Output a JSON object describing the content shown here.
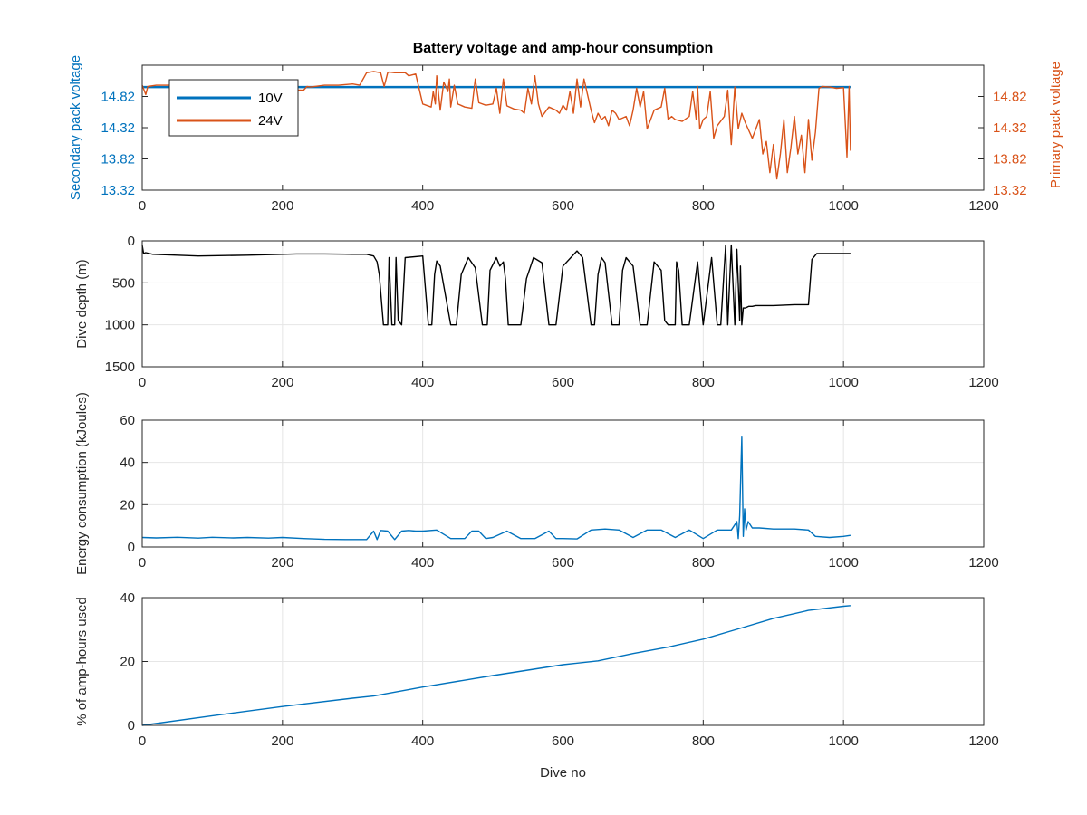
{
  "figure": {
    "background": "#ffffff"
  },
  "chart_data": [
    {
      "id": "voltage",
      "type": "line",
      "title": "Battery voltage and amp-hour consumption",
      "xlabel": "",
      "ylabel": "Secondary pack voltage",
      "ylabel_right": "Primary pack voltage",
      "xlim": [
        0,
        1200
      ],
      "ylim": [
        13.32,
        15.32
      ],
      "xticks": [
        "0",
        "200",
        "400",
        "600",
        "800",
        "1000",
        "1200"
      ],
      "yticks": [
        "13.32",
        "13.82",
        "14.32",
        "14.82"
      ],
      "yticks_right": [
        "13.32",
        "13.82",
        "14.32",
        "14.82"
      ],
      "grid": false,
      "legend_position": "top-left",
      "series": [
        {
          "name": "10V",
          "color": "#0072BD",
          "axis": "left",
          "x": [
            0,
            1010
          ],
          "y": [
            14.97,
            14.97
          ]
        },
        {
          "name": "24V",
          "color": "#D95319",
          "axis": "right",
          "x": [
            0,
            5,
            8,
            20,
            40,
            60,
            80,
            100,
            130,
            160,
            200,
            230,
            235,
            240,
            260,
            280,
            300,
            310,
            320,
            330,
            340,
            345,
            350,
            352,
            360,
            375,
            380,
            390,
            400,
            412,
            415,
            418,
            420,
            425,
            430,
            436,
            438,
            440,
            445,
            450,
            460,
            470,
            475,
            480,
            490,
            500,
            505,
            510,
            515,
            520,
            530,
            540,
            545,
            550,
            555,
            560,
            565,
            570,
            580,
            590,
            595,
            600,
            605,
            610,
            615,
            620,
            625,
            630,
            640,
            645,
            650,
            655,
            660,
            665,
            670,
            675,
            680,
            690,
            695,
            700,
            705,
            710,
            715,
            720,
            730,
            740,
            745,
            750,
            755,
            760,
            770,
            780,
            785,
            790,
            792,
            795,
            800,
            805,
            810,
            815,
            820,
            830,
            835,
            840,
            845,
            850,
            855,
            860,
            870,
            880,
            885,
            890,
            895,
            900,
            905,
            910,
            915,
            920,
            925,
            930,
            935,
            940,
            945,
            950,
            955,
            960,
            965,
            970,
            980,
            990,
            1000,
            1005,
            1008,
            1010
          ],
          "y": [
            15.0,
            14.85,
            14.98,
            15.0,
            15.0,
            15.02,
            14.99,
            14.97,
            14.96,
            14.95,
            14.93,
            14.92,
            14.98,
            14.97,
            15.0,
            15.0,
            15.02,
            15.0,
            15.2,
            15.22,
            15.2,
            14.98,
            15.2,
            15.21,
            15.2,
            15.2,
            15.15,
            15.18,
            14.7,
            14.65,
            14.9,
            14.7,
            15.15,
            14.6,
            15.05,
            14.9,
            15.1,
            14.65,
            15.0,
            14.7,
            14.65,
            14.63,
            15.1,
            14.72,
            14.68,
            14.7,
            14.95,
            14.55,
            15.1,
            14.67,
            14.62,
            14.6,
            14.55,
            14.95,
            14.7,
            15.15,
            14.7,
            14.5,
            14.65,
            14.6,
            14.55,
            14.68,
            14.6,
            14.9,
            14.55,
            15.1,
            14.65,
            15.1,
            14.6,
            14.4,
            14.55,
            14.45,
            14.5,
            14.35,
            14.6,
            14.55,
            14.45,
            14.5,
            14.35,
            14.6,
            14.95,
            14.65,
            14.9,
            14.3,
            14.6,
            14.65,
            14.95,
            14.45,
            14.5,
            14.45,
            14.42,
            14.5,
            14.9,
            14.45,
            14.98,
            14.3,
            14.45,
            14.5,
            14.9,
            14.15,
            14.35,
            14.5,
            14.92,
            14.05,
            14.97,
            14.3,
            14.55,
            14.4,
            14.15,
            14.45,
            13.9,
            14.1,
            13.6,
            14.05,
            13.5,
            13.9,
            14.45,
            13.6,
            14.0,
            14.5,
            13.9,
            14.2,
            13.6,
            14.45,
            13.8,
            14.25,
            14.95,
            14.98,
            14.97,
            14.95,
            14.96,
            13.85,
            14.98,
            13.95
          ]
        }
      ]
    },
    {
      "id": "depth",
      "type": "line",
      "title": "",
      "xlabel": "",
      "ylabel": "Dive depth (m)",
      "xlim": [
        0,
        1200
      ],
      "ylim": [
        0,
        1500
      ],
      "y_reversed": true,
      "xticks": [
        "0",
        "200",
        "400",
        "600",
        "800",
        "1000",
        "1200"
      ],
      "yticks": [
        "0",
        "500",
        "1000",
        "1500"
      ],
      "grid": true,
      "series": [
        {
          "name": "",
          "color": "#000000",
          "x": [
            0,
            2,
            5,
            15,
            50,
            80,
            150,
            220,
            260,
            300,
            320,
            330,
            335,
            338,
            344,
            350,
            352,
            356,
            360,
            362,
            365,
            370,
            375,
            400,
            408,
            413,
            417,
            420,
            425,
            440,
            448,
            455,
            465,
            475,
            485,
            492,
            496,
            505,
            510,
            515,
            518,
            522,
            540,
            548,
            558,
            570,
            580,
            590,
            600,
            620,
            628,
            640,
            645,
            650,
            655,
            660,
            670,
            680,
            685,
            690,
            700,
            710,
            720,
            730,
            740,
            745,
            750,
            760,
            762,
            765,
            770,
            775,
            780,
            792,
            800,
            812,
            820,
            825,
            832,
            835,
            840,
            845,
            848,
            852,
            853,
            855,
            857,
            860,
            865,
            870,
            875,
            880,
            900,
            930,
            945,
            950,
            955,
            962,
            980,
            1000,
            1010
          ],
          "y": [
            50,
            150,
            140,
            160,
            170,
            180,
            170,
            155,
            155,
            160,
            160,
            180,
            250,
            400,
            1000,
            1000,
            200,
            1000,
            1000,
            200,
            950,
            1000,
            200,
            180,
            1000,
            1000,
            400,
            240,
            300,
            1000,
            1000,
            400,
            200,
            320,
            1000,
            1000,
            350,
            200,
            300,
            250,
            450,
            1000,
            1000,
            450,
            200,
            260,
            1000,
            1000,
            300,
            120,
            200,
            1000,
            1000,
            400,
            200,
            260,
            1000,
            1000,
            350,
            200,
            300,
            1000,
            1000,
            250,
            350,
            950,
            1000,
            1000,
            250,
            350,
            1000,
            1000,
            1000,
            250,
            1000,
            200,
            1000,
            1000,
            50,
            1000,
            50,
            1000,
            100,
            950,
            300,
            1000,
            800,
            800,
            780,
            780,
            770,
            770,
            770,
            760,
            760,
            760,
            220,
            150,
            150,
            150,
            150
          ]
        }
      ]
    },
    {
      "id": "energy",
      "type": "line",
      "title": "",
      "xlabel": "",
      "ylabel": "Energy consumption (kJoules)",
      "xlim": [
        0,
        1200
      ],
      "ylim": [
        0,
        60
      ],
      "xticks": [
        "0",
        "200",
        "400",
        "600",
        "800",
        "1000",
        "1200"
      ],
      "yticks": [
        "0",
        "20",
        "40",
        "60"
      ],
      "grid": true,
      "series": [
        {
          "name": "",
          "color": "#0072BD",
          "x": [
            0,
            20,
            50,
            80,
            100,
            130,
            150,
            180,
            200,
            230,
            260,
            290,
            320,
            330,
            335,
            340,
            350,
            360,
            370,
            380,
            390,
            400,
            420,
            440,
            460,
            470,
            480,
            490,
            500,
            520,
            540,
            560,
            580,
            590,
            600,
            620,
            640,
            660,
            680,
            700,
            720,
            740,
            760,
            780,
            800,
            820,
            840,
            848,
            850,
            852,
            855,
            857,
            859,
            861,
            864,
            870,
            880,
            900,
            930,
            950,
            960,
            980,
            1000,
            1010
          ],
          "y": [
            4.5,
            4.3,
            4.6,
            4.2,
            4.6,
            4.3,
            4.5,
            4.2,
            4.5,
            4.0,
            3.6,
            3.5,
            3.5,
            7.5,
            3.5,
            7.8,
            7.5,
            3.5,
            7.5,
            7.8,
            7.5,
            7.5,
            8.0,
            4.0,
            4.0,
            7.5,
            7.5,
            4.0,
            4.5,
            7.5,
            4.0,
            4.0,
            7.5,
            4.0,
            4.0,
            3.8,
            8.0,
            8.5,
            8.0,
            4.5,
            8.0,
            8.0,
            4.5,
            8.0,
            4.0,
            8.0,
            8.0,
            12.0,
            4.0,
            15.0,
            52.0,
            5.0,
            18.0,
            8.0,
            12.0,
            9.0,
            9.0,
            8.5,
            8.5,
            8.0,
            5.0,
            4.5,
            5.0,
            5.5
          ]
        }
      ]
    },
    {
      "id": "amphours",
      "type": "line",
      "title": "",
      "xlabel": "Dive no",
      "ylabel": "% of amp-hours used",
      "xlim": [
        0,
        1200
      ],
      "ylim": [
        0,
        40
      ],
      "xticks": [
        "0",
        "200",
        "400",
        "600",
        "800",
        "1000",
        "1200"
      ],
      "yticks": [
        "0",
        "20",
        "40"
      ],
      "grid": true,
      "series": [
        {
          "name": "",
          "color": "#0072BD",
          "x": [
            0,
            100,
            200,
            300,
            330,
            400,
            500,
            600,
            650,
            700,
            750,
            800,
            850,
            900,
            950,
            1000,
            1010
          ],
          "y": [
            0,
            3.0,
            5.9,
            8.5,
            9.2,
            12.0,
            15.6,
            19.0,
            20.2,
            22.5,
            24.5,
            27.0,
            30.2,
            33.5,
            36.0,
            37.3,
            37.5
          ]
        }
      ]
    }
  ]
}
